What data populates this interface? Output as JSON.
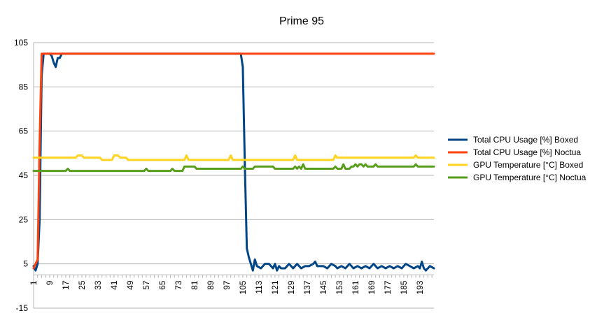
{
  "chart_data": {
    "type": "line",
    "title": "Prime 95",
    "xlabel": "",
    "ylabel": "",
    "x_range": [
      1,
      200
    ],
    "x_tick_labels": [
      "1",
      "9",
      "17",
      "25",
      "33",
      "41",
      "49",
      "57",
      "65",
      "73",
      "81",
      "89",
      "97",
      "105",
      "113",
      "121",
      "129",
      "137",
      "145",
      "153",
      "161",
      "169",
      "177",
      "185",
      "193"
    ],
    "ylim": [
      -15,
      105
    ],
    "y_ticks": [
      -15,
      5,
      25,
      45,
      65,
      85,
      105
    ],
    "grid": true,
    "legend_position": "right",
    "series": [
      {
        "name": "Total CPU Usage [%] Boxed",
        "color": "#004586",
        "points": [
          [
            1,
            4
          ],
          [
            2,
            2
          ],
          [
            3,
            5
          ],
          [
            4,
            25
          ],
          [
            5,
            90
          ],
          [
            6,
            100
          ],
          [
            7,
            100
          ],
          [
            8,
            100
          ],
          [
            9,
            100
          ],
          [
            10,
            99
          ],
          [
            11,
            96
          ],
          [
            12,
            94
          ],
          [
            13,
            98
          ],
          [
            14,
            98
          ],
          [
            15,
            100
          ],
          [
            16,
            100
          ],
          [
            17,
            100
          ],
          [
            30,
            100
          ],
          [
            50,
            100
          ],
          [
            70,
            100
          ],
          [
            90,
            100
          ],
          [
            104,
            100
          ],
          [
            105,
            94
          ],
          [
            106,
            50
          ],
          [
            107,
            12
          ],
          [
            108,
            8
          ],
          [
            109,
            5
          ],
          [
            110,
            2
          ],
          [
            111,
            7
          ],
          [
            112,
            4
          ],
          [
            114,
            3
          ],
          [
            116,
            5
          ],
          [
            118,
            5
          ],
          [
            120,
            3
          ],
          [
            121,
            5
          ],
          [
            122,
            2
          ],
          [
            123,
            4
          ],
          [
            124,
            3
          ],
          [
            126,
            3
          ],
          [
            128,
            5
          ],
          [
            130,
            3
          ],
          [
            132,
            5
          ],
          [
            134,
            3
          ],
          [
            136,
            4
          ],
          [
            138,
            4
          ],
          [
            140,
            5
          ],
          [
            141,
            6
          ],
          [
            142,
            4
          ],
          [
            143,
            4
          ],
          [
            145,
            4
          ],
          [
            147,
            3
          ],
          [
            149,
            5
          ],
          [
            151,
            4
          ],
          [
            152,
            3
          ],
          [
            154,
            4
          ],
          [
            156,
            3
          ],
          [
            158,
            5
          ],
          [
            160,
            3
          ],
          [
            162,
            4
          ],
          [
            164,
            3
          ],
          [
            166,
            4
          ],
          [
            168,
            3
          ],
          [
            170,
            5
          ],
          [
            172,
            3
          ],
          [
            174,
            4
          ],
          [
            176,
            3
          ],
          [
            178,
            4
          ],
          [
            180,
            3
          ],
          [
            182,
            4
          ],
          [
            184,
            3
          ],
          [
            186,
            5
          ],
          [
            188,
            4
          ],
          [
            190,
            3
          ],
          [
            192,
            4
          ],
          [
            193,
            3
          ],
          [
            194,
            6
          ],
          [
            195,
            3
          ],
          [
            196,
            2
          ],
          [
            197,
            3
          ],
          [
            198,
            4
          ],
          [
            200,
            3
          ]
        ]
      },
      {
        "name": "Total CPU Usage [%] Noctua",
        "color": "#ff420e",
        "points": [
          [
            1,
            3
          ],
          [
            2,
            5
          ],
          [
            3,
            7
          ],
          [
            4,
            60
          ],
          [
            5,
            100
          ],
          [
            6,
            100
          ],
          [
            200,
            100
          ]
        ]
      },
      {
        "name": "GPU Temperature [°C] Boxed",
        "color": "#ffd320",
        "points": [
          [
            1,
            53
          ],
          [
            22,
            53
          ],
          [
            23,
            54
          ],
          [
            25,
            54
          ],
          [
            26,
            53
          ],
          [
            34,
            53
          ],
          [
            35,
            52
          ],
          [
            40,
            52
          ],
          [
            41,
            54
          ],
          [
            43,
            54
          ],
          [
            44,
            53
          ],
          [
            47,
            53
          ],
          [
            48,
            52
          ],
          [
            76,
            52
          ],
          [
            77,
            54
          ],
          [
            78,
            52
          ],
          [
            98,
            52
          ],
          [
            99,
            54
          ],
          [
            100,
            52
          ],
          [
            130,
            52
          ],
          [
            131,
            54
          ],
          [
            132,
            52
          ],
          [
            150,
            52
          ],
          [
            151,
            54
          ],
          [
            152,
            53
          ],
          [
            190,
            53
          ],
          [
            191,
            54
          ],
          [
            192,
            53
          ],
          [
            200,
            53
          ]
        ]
      },
      {
        "name": "GPU Temperature [°C] Noctua",
        "color": "#579d1c",
        "points": [
          [
            1,
            47
          ],
          [
            17,
            47
          ],
          [
            18,
            48
          ],
          [
            19,
            47
          ],
          [
            56,
            47
          ],
          [
            57,
            48
          ],
          [
            58,
            47
          ],
          [
            69,
            47
          ],
          [
            70,
            48
          ],
          [
            71,
            47
          ],
          [
            75,
            47
          ],
          [
            76,
            49
          ],
          [
            81,
            49
          ],
          [
            82,
            48
          ],
          [
            104,
            48
          ],
          [
            105,
            49
          ],
          [
            106,
            48
          ],
          [
            110,
            48
          ],
          [
            111,
            49
          ],
          [
            120,
            49
          ],
          [
            121,
            48
          ],
          [
            130,
            48
          ],
          [
            131,
            49
          ],
          [
            132,
            48
          ],
          [
            133,
            49
          ],
          [
            134,
            48
          ],
          [
            135,
            50
          ],
          [
            136,
            48
          ],
          [
            150,
            48
          ],
          [
            151,
            49
          ],
          [
            152,
            48
          ],
          [
            154,
            48
          ],
          [
            155,
            50
          ],
          [
            156,
            48
          ],
          [
            158,
            48
          ],
          [
            159,
            49
          ],
          [
            160,
            49
          ],
          [
            161,
            50
          ],
          [
            162,
            49
          ],
          [
            163,
            50
          ],
          [
            164,
            50
          ],
          [
            165,
            49
          ],
          [
            166,
            50
          ],
          [
            167,
            49
          ],
          [
            170,
            49
          ],
          [
            171,
            50
          ],
          [
            172,
            49
          ],
          [
            180,
            49
          ],
          [
            181,
            49
          ],
          [
            190,
            49
          ],
          [
            191,
            50
          ],
          [
            192,
            49
          ],
          [
            200,
            49
          ]
        ]
      }
    ]
  }
}
